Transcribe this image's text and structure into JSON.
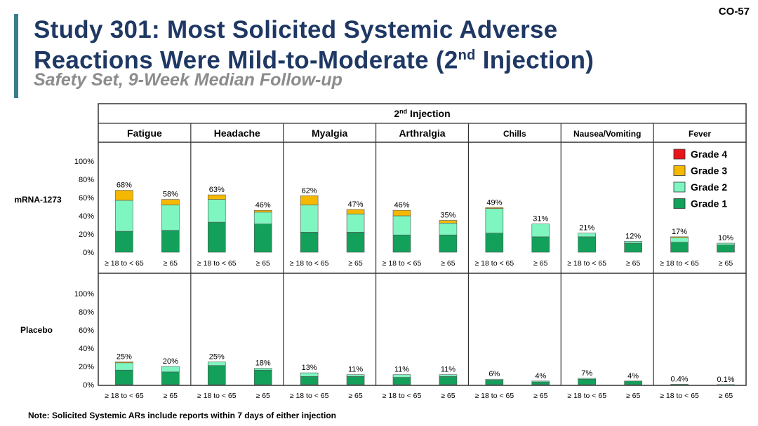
{
  "slide_id": "CO-57",
  "title_line1": "Study 301: Most Solicited Systemic Adverse",
  "title_line2_prefix": "Reactions Were Mild-to-Moderate (2",
  "title_line2_sup": "nd",
  "title_line2_suffix": " Injection)",
  "subtitle": "Safety Set, 9-Week Median Follow-up",
  "note": "Note: Solicited Systemic ARs include reports within 7 days of either injection",
  "colors": {
    "grade4": "#e8141b",
    "grade3": "#f5b800",
    "grade2": "#7ff5c0",
    "grade1": "#13a05a",
    "border": "#333333"
  },
  "chart_data": {
    "type": "bar",
    "stacked": true,
    "header_prefix": "2",
    "header_sup": "nd",
    "header_suffix": " Injection",
    "panels": [
      "Fatigue",
      "Headache",
      "Myalgia",
      "Arthralgia",
      "Chills",
      "Nausea/Vomiting",
      "Fever"
    ],
    "categories": [
      "≥ 18 to < 65",
      "≥ 65"
    ],
    "legend": [
      "Grade 4",
      "Grade 3",
      "Grade 2",
      "Grade 1"
    ],
    "legend_position": "top-right",
    "y_ticks": [
      "100%",
      "80%",
      "60%",
      "40%",
      "20%",
      "0%"
    ],
    "ylim": [
      0,
      100
    ],
    "rows": [
      {
        "name": "mRNA-1273",
        "bars": [
          {
            "panel": "Fatigue",
            "group": "≥ 18 to < 65",
            "grade1": 23,
            "grade2": 34,
            "grade3": 11,
            "grade4": 0,
            "label": "68%"
          },
          {
            "panel": "Fatigue",
            "group": "≥ 65",
            "grade1": 24,
            "grade2": 28,
            "grade3": 6,
            "grade4": 0,
            "label": "58%"
          },
          {
            "panel": "Headache",
            "group": "≥ 18 to < 65",
            "grade1": 33,
            "grade2": 25,
            "grade3": 5,
            "grade4": 0,
            "label": "63%"
          },
          {
            "panel": "Headache",
            "group": "≥ 65",
            "grade1": 31,
            "grade2": 13,
            "grade3": 2,
            "grade4": 0,
            "label": "46%"
          },
          {
            "panel": "Myalgia",
            "group": "≥ 18 to < 65",
            "grade1": 22,
            "grade2": 30,
            "grade3": 10,
            "grade4": 0,
            "label": "62%"
          },
          {
            "panel": "Myalgia",
            "group": "≥ 65",
            "grade1": 22,
            "grade2": 20,
            "grade3": 5,
            "grade4": 0,
            "label": "47%"
          },
          {
            "panel": "Arthralgia",
            "group": "≥ 18 to < 65",
            "grade1": 19,
            "grade2": 21,
            "grade3": 6,
            "grade4": 0,
            "label": "46%"
          },
          {
            "panel": "Arthralgia",
            "group": "≥ 65",
            "grade1": 19,
            "grade2": 13,
            "grade3": 3,
            "grade4": 0,
            "label": "35%"
          },
          {
            "panel": "Chills",
            "group": "≥ 18 to < 65",
            "grade1": 21,
            "grade2": 27,
            "grade3": 1,
            "grade4": 0,
            "label": "49%"
          },
          {
            "panel": "Chills",
            "group": "≥ 65",
            "grade1": 17,
            "grade2": 14,
            "grade3": 0,
            "grade4": 0,
            "label": "31%"
          },
          {
            "panel": "Nausea/Vomiting",
            "group": "≥ 18 to < 65",
            "grade1": 17,
            "grade2": 4,
            "grade3": 0,
            "grade4": 0,
            "label": "21%"
          },
          {
            "panel": "Nausea/Vomiting",
            "group": "≥ 65",
            "grade1": 10,
            "grade2": 2,
            "grade3": 0,
            "grade4": 0,
            "label": "12%"
          },
          {
            "panel": "Fever",
            "group": "≥ 18 to < 65",
            "grade1": 11,
            "grade2": 5,
            "grade3": 1,
            "grade4": 0,
            "label": "17%"
          },
          {
            "panel": "Fever",
            "group": "≥ 65",
            "grade1": 8,
            "grade2": 2,
            "grade3": 0,
            "grade4": 0,
            "label": "10%"
          }
        ]
      },
      {
        "name": "Placebo",
        "bars": [
          {
            "panel": "Fatigue",
            "group": "≥ 18 to < 65",
            "grade1": 16,
            "grade2": 8,
            "grade3": 1,
            "grade4": 0,
            "label": "25%"
          },
          {
            "panel": "Fatigue",
            "group": "≥ 65",
            "grade1": 14,
            "grade2": 6,
            "grade3": 0,
            "grade4": 0,
            "label": "20%"
          },
          {
            "panel": "Headache",
            "group": "≥ 18 to < 65",
            "grade1": 21,
            "grade2": 4,
            "grade3": 0,
            "grade4": 0,
            "label": "25%"
          },
          {
            "panel": "Headache",
            "group": "≥ 65",
            "grade1": 16,
            "grade2": 2,
            "grade3": 0,
            "grade4": 0,
            "label": "18%"
          },
          {
            "panel": "Myalgia",
            "group": "≥ 18 to < 65",
            "grade1": 9,
            "grade2": 4,
            "grade3": 0,
            "grade4": 0,
            "label": "13%"
          },
          {
            "panel": "Myalgia",
            "group": "≥ 65",
            "grade1": 9,
            "grade2": 2,
            "grade3": 0,
            "grade4": 0,
            "label": "11%"
          },
          {
            "panel": "Arthralgia",
            "group": "≥ 18 to < 65",
            "grade1": 8,
            "grade2": 3,
            "grade3": 0,
            "grade4": 0,
            "label": "11%"
          },
          {
            "panel": "Arthralgia",
            "group": "≥ 65",
            "grade1": 9,
            "grade2": 2,
            "grade3": 0,
            "grade4": 0,
            "label": "11%"
          },
          {
            "panel": "Chills",
            "group": "≥ 18 to < 65",
            "grade1": 5,
            "grade2": 1,
            "grade3": 0,
            "grade4": 0,
            "label": "6%"
          },
          {
            "panel": "Chills",
            "group": "≥ 65",
            "grade1": 3,
            "grade2": 1,
            "grade3": 0,
            "grade4": 0,
            "label": "4%"
          },
          {
            "panel": "Nausea/Vomiting",
            "group": "≥ 18 to < 65",
            "grade1": 6,
            "grade2": 1,
            "grade3": 0,
            "grade4": 0,
            "label": "7%"
          },
          {
            "panel": "Nausea/Vomiting",
            "group": "≥ 65",
            "grade1": 4,
            "grade2": 0,
            "grade3": 0,
            "grade4": 0,
            "label": "4%"
          },
          {
            "panel": "Fever",
            "group": "≥ 18 to < 65",
            "grade1": 0.4,
            "grade2": 0,
            "grade3": 0,
            "grade4": 0,
            "label": "0.4%"
          },
          {
            "panel": "Fever",
            "group": "≥ 65",
            "grade1": 0.1,
            "grade2": 0,
            "grade3": 0,
            "grade4": 0,
            "label": "0.1%"
          }
        ]
      }
    ]
  }
}
